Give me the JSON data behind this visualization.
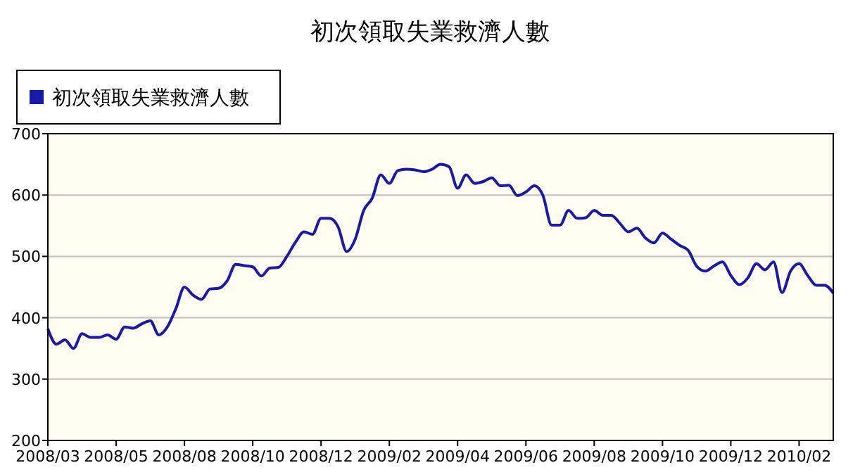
{
  "chart_data": {
    "type": "line",
    "title": "初次領取失業救濟人數",
    "categories": [
      "2008/03",
      null,
      null,
      null,
      null,
      null,
      null,
      null,
      "2008/05",
      null,
      null,
      null,
      null,
      null,
      null,
      null,
      "2008/08",
      null,
      null,
      null,
      null,
      null,
      null,
      null,
      "2008/10",
      null,
      null,
      null,
      null,
      null,
      null,
      null,
      "2008/12",
      null,
      null,
      null,
      null,
      null,
      null,
      null,
      "2009/02",
      null,
      null,
      null,
      null,
      null,
      null,
      null,
      "2009/04",
      null,
      null,
      null,
      null,
      null,
      null,
      null,
      "2009/06",
      null,
      null,
      null,
      null,
      null,
      null,
      null,
      "2009/08",
      null,
      null,
      null,
      null,
      null,
      null,
      null,
      "2009/10",
      null,
      null,
      null,
      null,
      null,
      null,
      null,
      "2009/12",
      null,
      null,
      null,
      null,
      null,
      null,
      null,
      "2010/02",
      null,
      null,
      null,
      null
    ],
    "series": [
      {
        "name": "初次領取失業救濟人數",
        "color": "#1a1aa8",
        "values": [
          382,
          357,
          364,
          350,
          374,
          368,
          368,
          372,
          365,
          385,
          383,
          390,
          395,
          372,
          385,
          415,
          450,
          437,
          430,
          447,
          448,
          460,
          487,
          485,
          483,
          468,
          481,
          482,
          500,
          523,
          540,
          536,
          562,
          562,
          548,
          508,
          528,
          575,
          595,
          633,
          619,
          640,
          642,
          641,
          638,
          642,
          650,
          646,
          611,
          633,
          619,
          622,
          628,
          615,
          616,
          599,
          605,
          615,
          599,
          551,
          551,
          575,
          562,
          563,
          575,
          567,
          567,
          554,
          540,
          546,
          530,
          522,
          538,
          528,
          518,
          510,
          484,
          476,
          484,
          491,
          469,
          454,
          465,
          488,
          478,
          491,
          441,
          476,
          488,
          469,
          453,
          453,
          440
        ]
      }
    ],
    "ylim": [
      200,
      700
    ],
    "yticks": [
      200,
      300,
      400,
      500,
      600,
      700
    ],
    "grid": "y",
    "legend": "top left"
  }
}
